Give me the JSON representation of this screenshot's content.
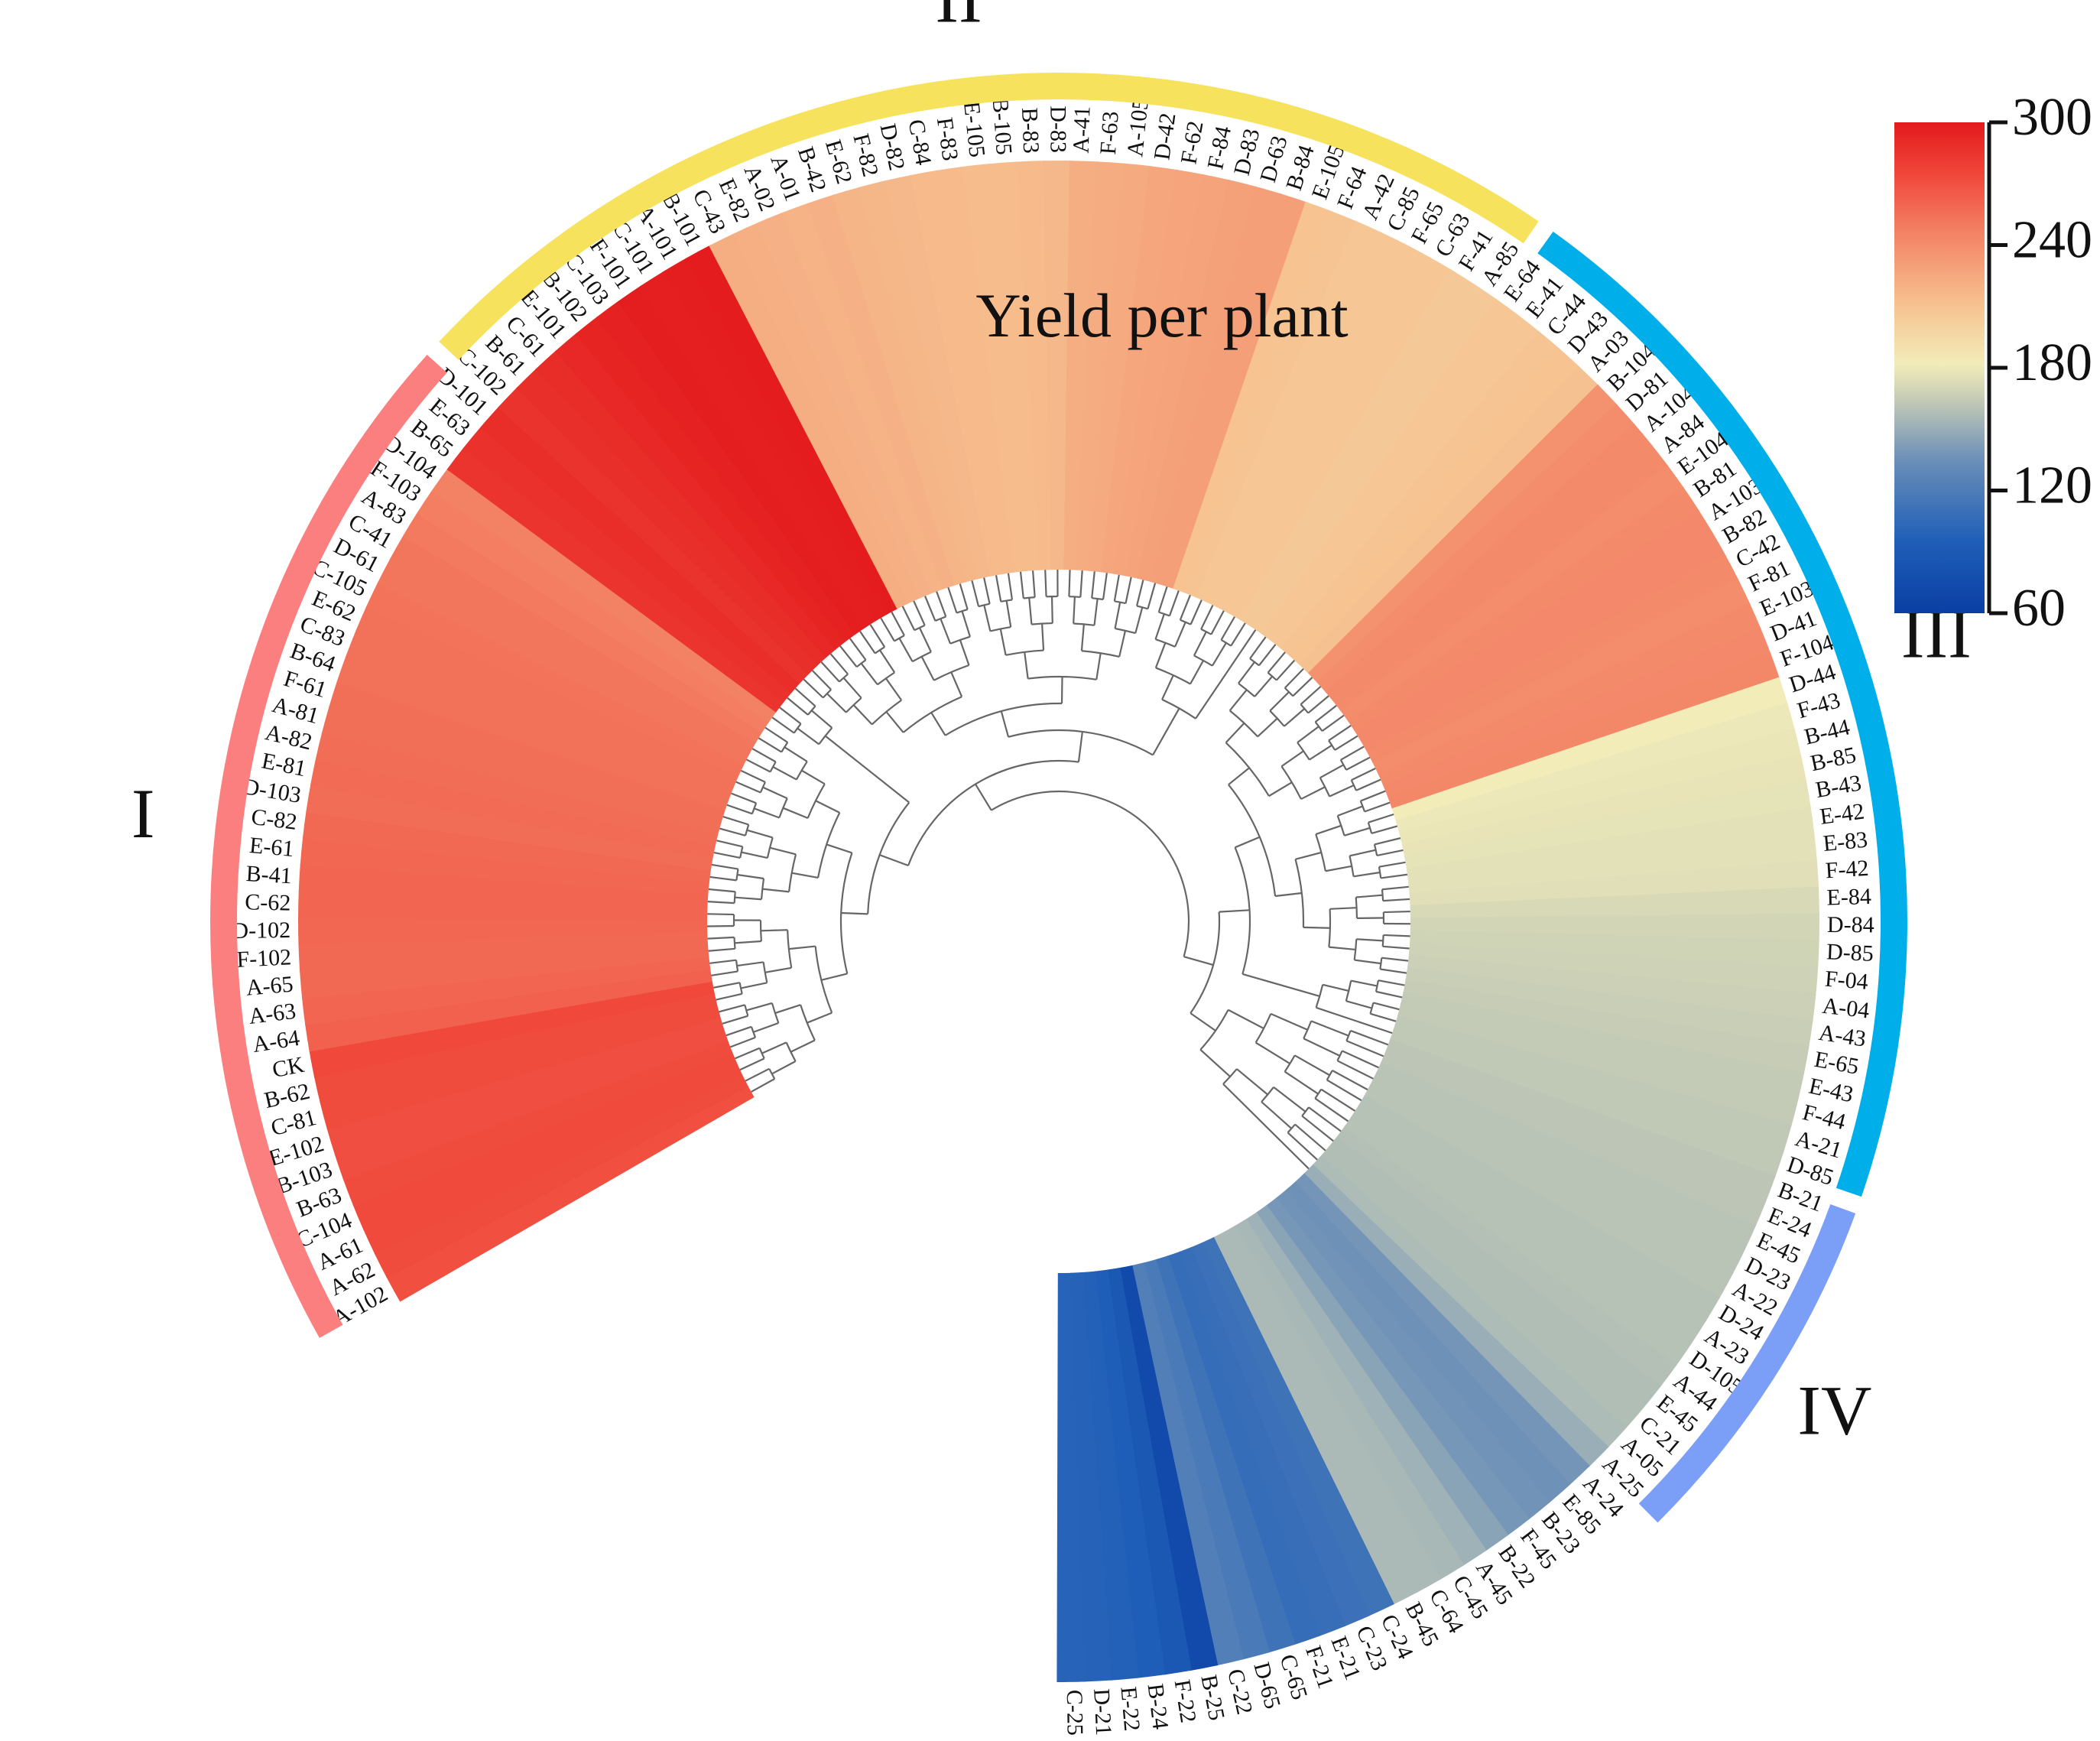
{
  "chart_data": {
    "type": "circular-dendrogram-heatmap",
    "title": "Yield per plant",
    "value_range": [
      60,
      300
    ],
    "colorbar": {
      "ticks": [
        "300",
        "240",
        "180",
        "120",
        "60"
      ],
      "tick_values": [
        300,
        240,
        180,
        120,
        60
      ],
      "stops": [
        {
          "v": 60,
          "color": "#0a3fa3"
        },
        {
          "v": 95,
          "color": "#1f5eb8"
        },
        {
          "v": 135,
          "color": "#6b8fb8"
        },
        {
          "v": 165,
          "color": "#c6ccb6"
        },
        {
          "v": 182,
          "color": "#f2ecb9"
        },
        {
          "v": 210,
          "color": "#f6c391"
        },
        {
          "v": 245,
          "color": "#f38466"
        },
        {
          "v": 275,
          "color": "#f0463a"
        },
        {
          "v": 300,
          "color": "#e31a1c"
        }
      ]
    },
    "clusters": [
      {
        "name": "I",
        "color": "#fb7f7f",
        "start": 0,
        "end": 35
      },
      {
        "name": "II",
        "color": "#f7e25e",
        "start": 36,
        "end": 76
      },
      {
        "name": "III",
        "color": "#00aeea",
        "start": 77,
        "end": 113
      },
      {
        "name": "IV",
        "color": "#7b9ef7",
        "start": 114,
        "end": 126
      }
    ],
    "leaves": [
      {
        "id": "A-102",
        "v": 270
      },
      {
        "id": "A-62",
        "v": 272
      },
      {
        "id": "A-61",
        "v": 273
      },
      {
        "id": "C-104",
        "v": 273
      },
      {
        "id": "B-63",
        "v": 272
      },
      {
        "id": "B-103",
        "v": 271
      },
      {
        "id": "E-102",
        "v": 271
      },
      {
        "id": "C-81",
        "v": 272
      },
      {
        "id": "B-62",
        "v": 272
      },
      {
        "id": "CK",
        "v": 274
      },
      {
        "id": "A-64",
        "v": 262
      },
      {
        "id": "A-63",
        "v": 260
      },
      {
        "id": "A-65",
        "v": 258
      },
      {
        "id": "F-102",
        "v": 258
      },
      {
        "id": "D-102",
        "v": 259
      },
      {
        "id": "C-62",
        "v": 260
      },
      {
        "id": "B-41",
        "v": 260
      },
      {
        "id": "E-61",
        "v": 259
      },
      {
        "id": "C-82",
        "v": 258
      },
      {
        "id": "D-103",
        "v": 256
      },
      {
        "id": "E-81",
        "v": 257
      },
      {
        "id": "A-82",
        "v": 256
      },
      {
        "id": "A-81",
        "v": 255
      },
      {
        "id": "F-61",
        "v": 255
      },
      {
        "id": "B-64",
        "v": 254
      },
      {
        "id": "C-83",
        "v": 254
      },
      {
        "id": "E-62",
        "v": 254
      },
      {
        "id": "C-105",
        "v": 253
      },
      {
        "id": "D-61",
        "v": 252
      },
      {
        "id": "C-41",
        "v": 252
      },
      {
        "id": "A-83",
        "v": 250
      },
      {
        "id": "F-103",
        "v": 248
      },
      {
        "id": "D-104",
        "v": 246
      },
      {
        "id": "B-65",
        "v": 285
      },
      {
        "id": "E-63",
        "v": 287
      },
      {
        "id": "D-101",
        "v": 289
      },
      {
        "id": "C-102",
        "v": 286
      },
      {
        "id": "B-61",
        "v": 288
      },
      {
        "id": "C-61",
        "v": 290
      },
      {
        "id": "E-101",
        "v": 292
      },
      {
        "id": "B-102",
        "v": 294
      },
      {
        "id": "C-103",
        "v": 296
      },
      {
        "id": "F-101",
        "v": 298
      },
      {
        "id": "C-101",
        "v": 297
      },
      {
        "id": "A-101",
        "v": 298
      },
      {
        "id": "B-101",
        "v": 299
      },
      {
        "id": "C-43",
        "v": 222
      },
      {
        "id": "E-82",
        "v": 221
      },
      {
        "id": "A-02",
        "v": 220
      },
      {
        "id": "A-01",
        "v": 219
      },
      {
        "id": "B-42",
        "v": 220
      },
      {
        "id": "E-62",
        "v": 218
      },
      {
        "id": "F-82",
        "v": 217
      },
      {
        "id": "D-82",
        "v": 216
      },
      {
        "id": "C-84",
        "v": 215
      },
      {
        "id": "F-83",
        "v": 215
      },
      {
        "id": "E-105",
        "v": 214
      },
      {
        "id": "B-105",
        "v": 214
      },
      {
        "id": "B-83",
        "v": 215
      },
      {
        "id": "D-83",
        "v": 216
      },
      {
        "id": "A-41",
        "v": 222
      },
      {
        "id": "F-63",
        "v": 223
      },
      {
        "id": "A-105",
        "v": 224
      },
      {
        "id": "D-42",
        "v": 226
      },
      {
        "id": "F-62",
        "v": 227
      },
      {
        "id": "F-84",
        "v": 228
      },
      {
        "id": "D-83",
        "v": 229
      },
      {
        "id": "D-63",
        "v": 230
      },
      {
        "id": "B-84",
        "v": 230
      },
      {
        "id": "E-105",
        "v": 210
      },
      {
        "id": "F-64",
        "v": 209
      },
      {
        "id": "A-42",
        "v": 208
      },
      {
        "id": "C-85",
        "v": 208
      },
      {
        "id": "F-65",
        "v": 207
      },
      {
        "id": "C-63",
        "v": 207
      },
      {
        "id": "F-41",
        "v": 206
      },
      {
        "id": "A-85",
        "v": 206
      },
      {
        "id": "E-64",
        "v": 207
      },
      {
        "id": "E-41",
        "v": 208
      },
      {
        "id": "C-44",
        "v": 209
      },
      {
        "id": "D-43",
        "v": 210
      },
      {
        "id": "A-03",
        "v": 211
      },
      {
        "id": "B-104",
        "v": 238
      },
      {
        "id": "D-81",
        "v": 240
      },
      {
        "id": "A-104",
        "v": 241
      },
      {
        "id": "A-84",
        "v": 241
      },
      {
        "id": "E-104",
        "v": 240
      },
      {
        "id": "B-81",
        "v": 241
      },
      {
        "id": "A-103",
        "v": 242
      },
      {
        "id": "B-82",
        "v": 242
      },
      {
        "id": "C-42",
        "v": 241
      },
      {
        "id": "F-81",
        "v": 240
      },
      {
        "id": "E-103",
        "v": 241
      },
      {
        "id": "D-41",
        "v": 242
      },
      {
        "id": "F-104",
        "v": 243
      },
      {
        "id": "D-44",
        "v": 182
      },
      {
        "id": "F-43",
        "v": 180
      },
      {
        "id": "B-44",
        "v": 179
      },
      {
        "id": "B-85",
        "v": 178
      },
      {
        "id": "B-43",
        "v": 177
      },
      {
        "id": "E-42",
        "v": 176
      },
      {
        "id": "E-83",
        "v": 176
      },
      {
        "id": "F-42",
        "v": 175
      },
      {
        "id": "E-84",
        "v": 172
      },
      {
        "id": "D-84",
        "v": 170
      },
      {
        "id": "D-85",
        "v": 169
      },
      {
        "id": "F-04",
        "v": 168
      },
      {
        "id": "A-04",
        "v": 167
      },
      {
        "id": "A-43",
        "v": 166
      },
      {
        "id": "E-65",
        "v": 165
      },
      {
        "id": "E-43",
        "v": 164
      },
      {
        "id": "F-44",
        "v": 164
      },
      {
        "id": "A-21",
        "v": 163
      },
      {
        "id": "D-85",
        "v": 163
      },
      {
        "id": "B-21",
        "v": 162
      },
      {
        "id": "E-24",
        "v": 162
      },
      {
        "id": "E-45",
        "v": 161
      },
      {
        "id": "D-23",
        "v": 161
      },
      {
        "id": "A-22",
        "v": 161
      },
      {
        "id": "D-24",
        "v": 160
      },
      {
        "id": "A-23",
        "v": 160
      },
      {
        "id": "D-105",
        "v": 160
      },
      {
        "id": "A-44",
        "v": 159
      },
      {
        "id": "E-45",
        "v": 158
      },
      {
        "id": "C-21",
        "v": 158
      },
      {
        "id": "A-05",
        "v": 157
      },
      {
        "id": "A-25",
        "v": 150
      },
      {
        "id": "A-24",
        "v": 138
      },
      {
        "id": "E-85",
        "v": 136
      },
      {
        "id": "B-23",
        "v": 137
      },
      {
        "id": "F-45",
        "v": 139
      },
      {
        "id": "B-22",
        "v": 145
      },
      {
        "id": "A-45",
        "v": 152
      },
      {
        "id": "C-45",
        "v": 155
      },
      {
        "id": "C-64",
        "v": 156
      },
      {
        "id": "B-45",
        "v": 156
      },
      {
        "id": "C-24",
        "v": 112
      },
      {
        "id": "C-23",
        "v": 110
      },
      {
        "id": "E-21",
        "v": 108
      },
      {
        "id": "F-21",
        "v": 107
      },
      {
        "id": "C-65",
        "v": 112
      },
      {
        "id": "D-65",
        "v": 118
      },
      {
        "id": "C-22",
        "v": 122
      },
      {
        "id": "B-25",
        "v": 72
      },
      {
        "id": "F-22",
        "v": 88
      },
      {
        "id": "B-24",
        "v": 95
      },
      {
        "id": "E-22",
        "v": 97
      },
      {
        "id": "D-21",
        "v": 98
      },
      {
        "id": "C-25",
        "v": 99
      }
    ]
  }
}
